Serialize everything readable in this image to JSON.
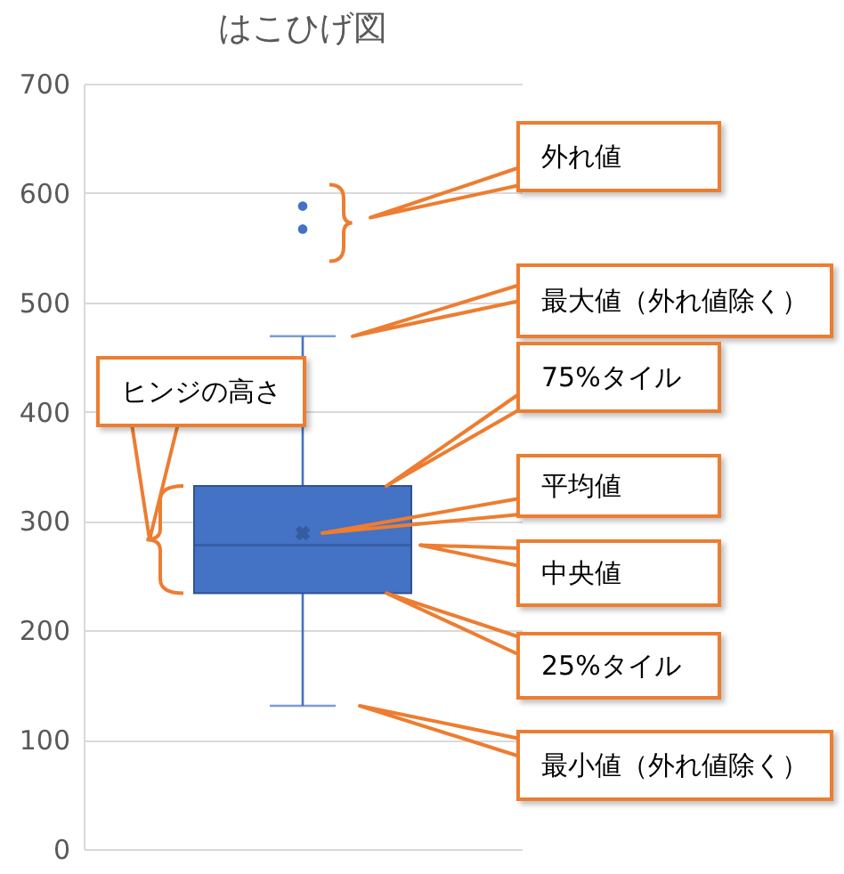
{
  "chart_data": {
    "type": "box",
    "title": "はこひげ図",
    "categories": [
      null
    ],
    "series": [
      {
        "color": "#4472c4",
        "boxes": [
          {
            "low": 131,
            "q1": 234,
            "median": 278,
            "q3": 332,
            "high": 469,
            "mean": 289,
            "outliers": [
              588,
              567
            ]
          }
        ]
      }
    ],
    "ylim": [
      0,
      700
    ],
    "yticks": [
      0,
      100,
      200,
      300,
      400,
      500,
      600,
      700
    ],
    "grid": "y",
    "tick_labels": "y",
    "annotations": [
      "外れ値",
      "最大値（外れ値除く）",
      "75%タイル",
      "平均値",
      "中央値",
      "25%タイル",
      "最小値（外れ値除く）",
      "ヒンジの高さ"
    ]
  }
}
